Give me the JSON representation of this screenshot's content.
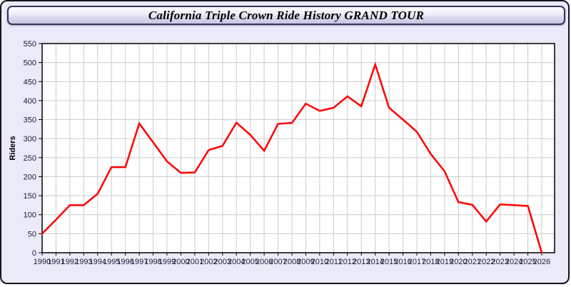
{
  "window": {
    "title": "California Triple Crown Ride History GRAND TOUR"
  },
  "chart_data": {
    "type": "line",
    "title": "California Triple Crown Ride History GRAND TOUR",
    "xlabel": "",
    "ylabel": "Riders",
    "ylim": [
      0,
      550
    ],
    "ytick_step": 50,
    "grid": true,
    "legend_position": "none",
    "x": [
      1990,
      1991,
      1992,
      1993,
      1994,
      1995,
      1996,
      1997,
      1998,
      1999,
      2000,
      2001,
      2002,
      2003,
      2004,
      2005,
      2006,
      2007,
      2008,
      2009,
      2010,
      2011,
      2012,
      2013,
      2014,
      2015,
      2016,
      2017,
      2018,
      2019,
      2020,
      2021,
      2022,
      2023,
      2024,
      2025,
      2026
    ],
    "series": [
      {
        "name": "Riders",
        "color": "#FF0000",
        "values": [
          50,
          87,
          125,
          125,
          155,
          225,
          225,
          340,
          290,
          240,
          210,
          211,
          270,
          281,
          342,
          310,
          268,
          339,
          341,
          392,
          373,
          381,
          411,
          385,
          495,
          381,
          350,
          318,
          260,
          214,
          133,
          126,
          82,
          127,
          125,
          123,
          0
        ]
      }
    ],
    "colors": {
      "plot_background": "#FFFFFF",
      "page_background": "#EAEAF8",
      "gridline": "#CCCCCC",
      "axis_border": "#000000",
      "tick_label": "#1C1C3A",
      "line": "#FF0000"
    }
  }
}
